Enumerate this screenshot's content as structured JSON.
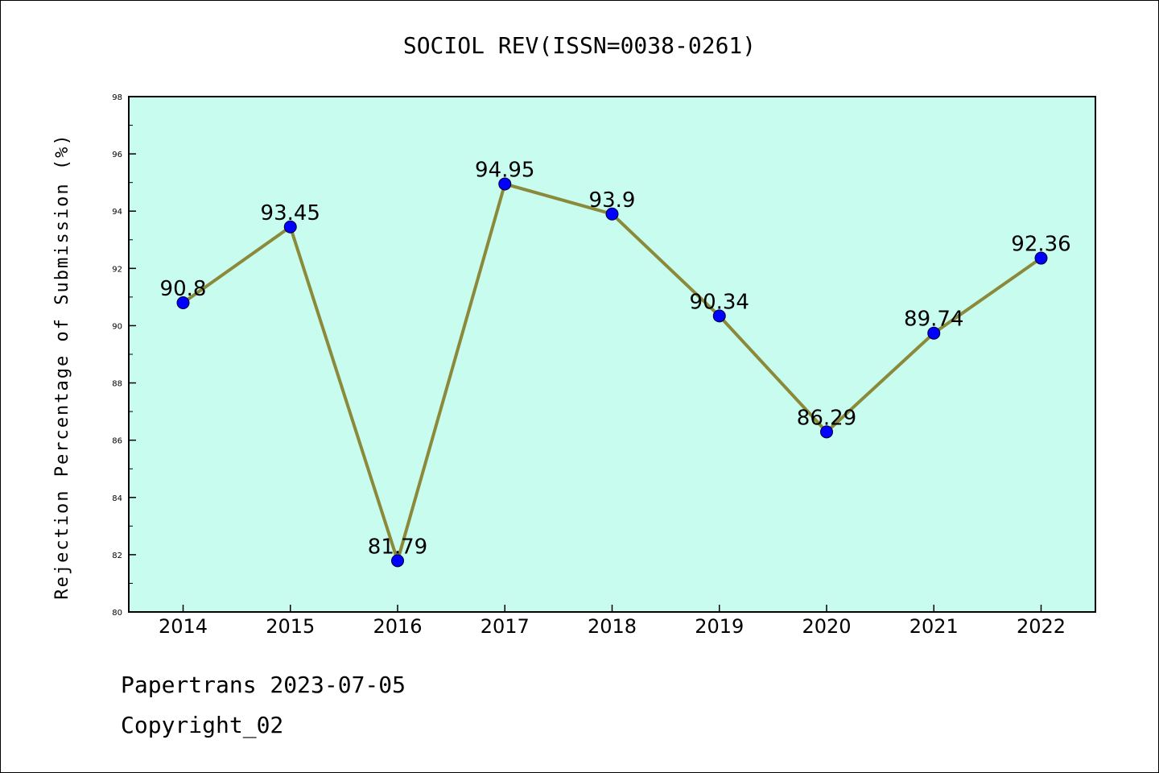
{
  "chart_data": {
    "type": "line",
    "title": "SOCIOL REV(ISSN=0038-0261)",
    "ylabel": "Rejection Percentage of Submission (%)",
    "xlabel": "",
    "categories": [
      "2014",
      "2015",
      "2016",
      "2017",
      "2018",
      "2019",
      "2020",
      "2021",
      "2022"
    ],
    "series": [
      {
        "values": [
          90.8,
          93.45,
          81.79,
          94.95,
          93.9,
          90.34,
          86.29,
          89.74,
          92.36
        ],
        "labels": [
          "90.8",
          "93.45",
          "81.79",
          "94.95",
          "93.9",
          "90.34",
          "86.29",
          "89.74",
          "92.36"
        ]
      }
    ],
    "ylim": [
      80,
      98
    ],
    "yticks": [
      80,
      82,
      84,
      86,
      88,
      90,
      92,
      94,
      96,
      98
    ],
    "grid": false,
    "legend": "none",
    "colors": {
      "plot_background": "#c8fcef",
      "line": "#8b8a3a",
      "marker": "#0000ff"
    }
  },
  "footer": {
    "line1": "Papertrans 2023-07-05",
    "line2": "Copyright_02"
  }
}
